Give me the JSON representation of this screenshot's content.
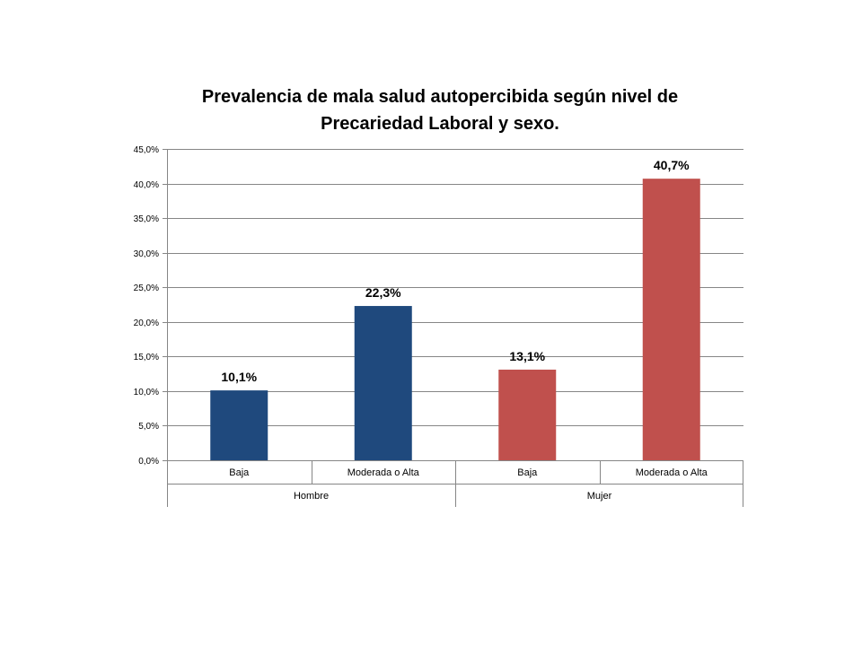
{
  "chart_data": {
    "type": "bar",
    "title_line1": "Prevalencia de mala salud autopercibida según nivel de",
    "title_line2": "Precariedad Laboral y sexo.",
    "groups": [
      "Hombre",
      "Mujer"
    ],
    "categories": [
      "Baja",
      "Moderada o Alta",
      "Baja",
      "Moderada o Alta"
    ],
    "bar_groups": [
      0,
      0,
      1,
      1
    ],
    "values": [
      10.1,
      22.3,
      13.1,
      40.7
    ],
    "data_labels": [
      "10,1%",
      "22,3%",
      "13,1%",
      "40,7%"
    ],
    "colors": [
      "#1F497D",
      "#1F497D",
      "#C0504D",
      "#C0504D"
    ],
    "ylim": [
      0,
      45
    ],
    "yticks": [
      0,
      5,
      10,
      15,
      20,
      25,
      30,
      35,
      40,
      45
    ],
    "ytick_labels": [
      "0,0%",
      "5,0%",
      "10,0%",
      "15,0%",
      "20,0%",
      "25,0%",
      "30,0%",
      "35,0%",
      "40,0%",
      "45,0%"
    ],
    "grid": true,
    "legend": "none",
    "xlabel": "",
    "ylabel": ""
  }
}
